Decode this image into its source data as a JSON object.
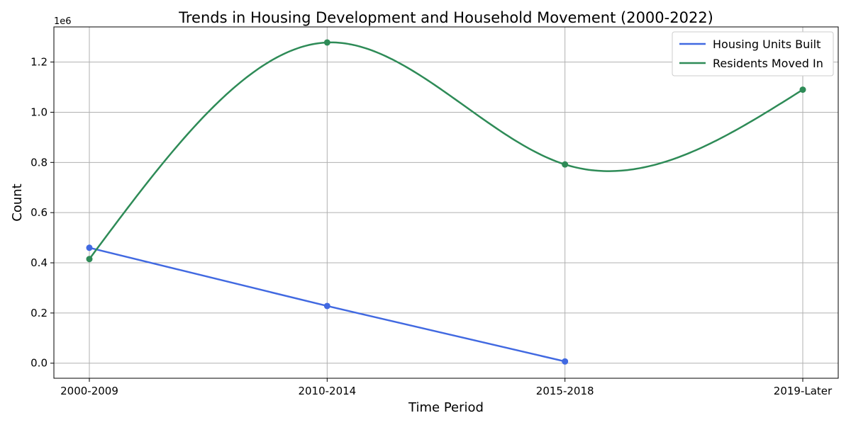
{
  "chart_data": {
    "type": "line",
    "title": "Trends in Housing Development and Household Movement (2000-2022)",
    "xlabel": "Time Period",
    "ylabel": "Count",
    "y_scale_offset": "1e6",
    "categories": [
      "2000-2009",
      "2010-2014",
      "2015-2018",
      "2019-Later"
    ],
    "ylim": [
      -0.06,
      1.34
    ],
    "y_ticks": [
      0.0,
      0.2,
      0.4,
      0.6,
      0.8,
      1.0,
      1.2
    ],
    "y_tick_labels": [
      "0.0",
      "0.2",
      "0.4",
      "0.6",
      "0.8",
      "1.0",
      "1.2"
    ],
    "grid": true,
    "legend_position": "top-right",
    "series": [
      {
        "name": "Housing Units Built",
        "color": "#4169e1",
        "values": [
          0.46,
          0.228,
          0.007,
          null
        ],
        "smooth": false
      },
      {
        "name": "Residents Moved In",
        "color": "#2e8b57",
        "values": [
          0.415,
          1.278,
          0.792,
          1.09
        ],
        "smooth": true
      }
    ]
  }
}
